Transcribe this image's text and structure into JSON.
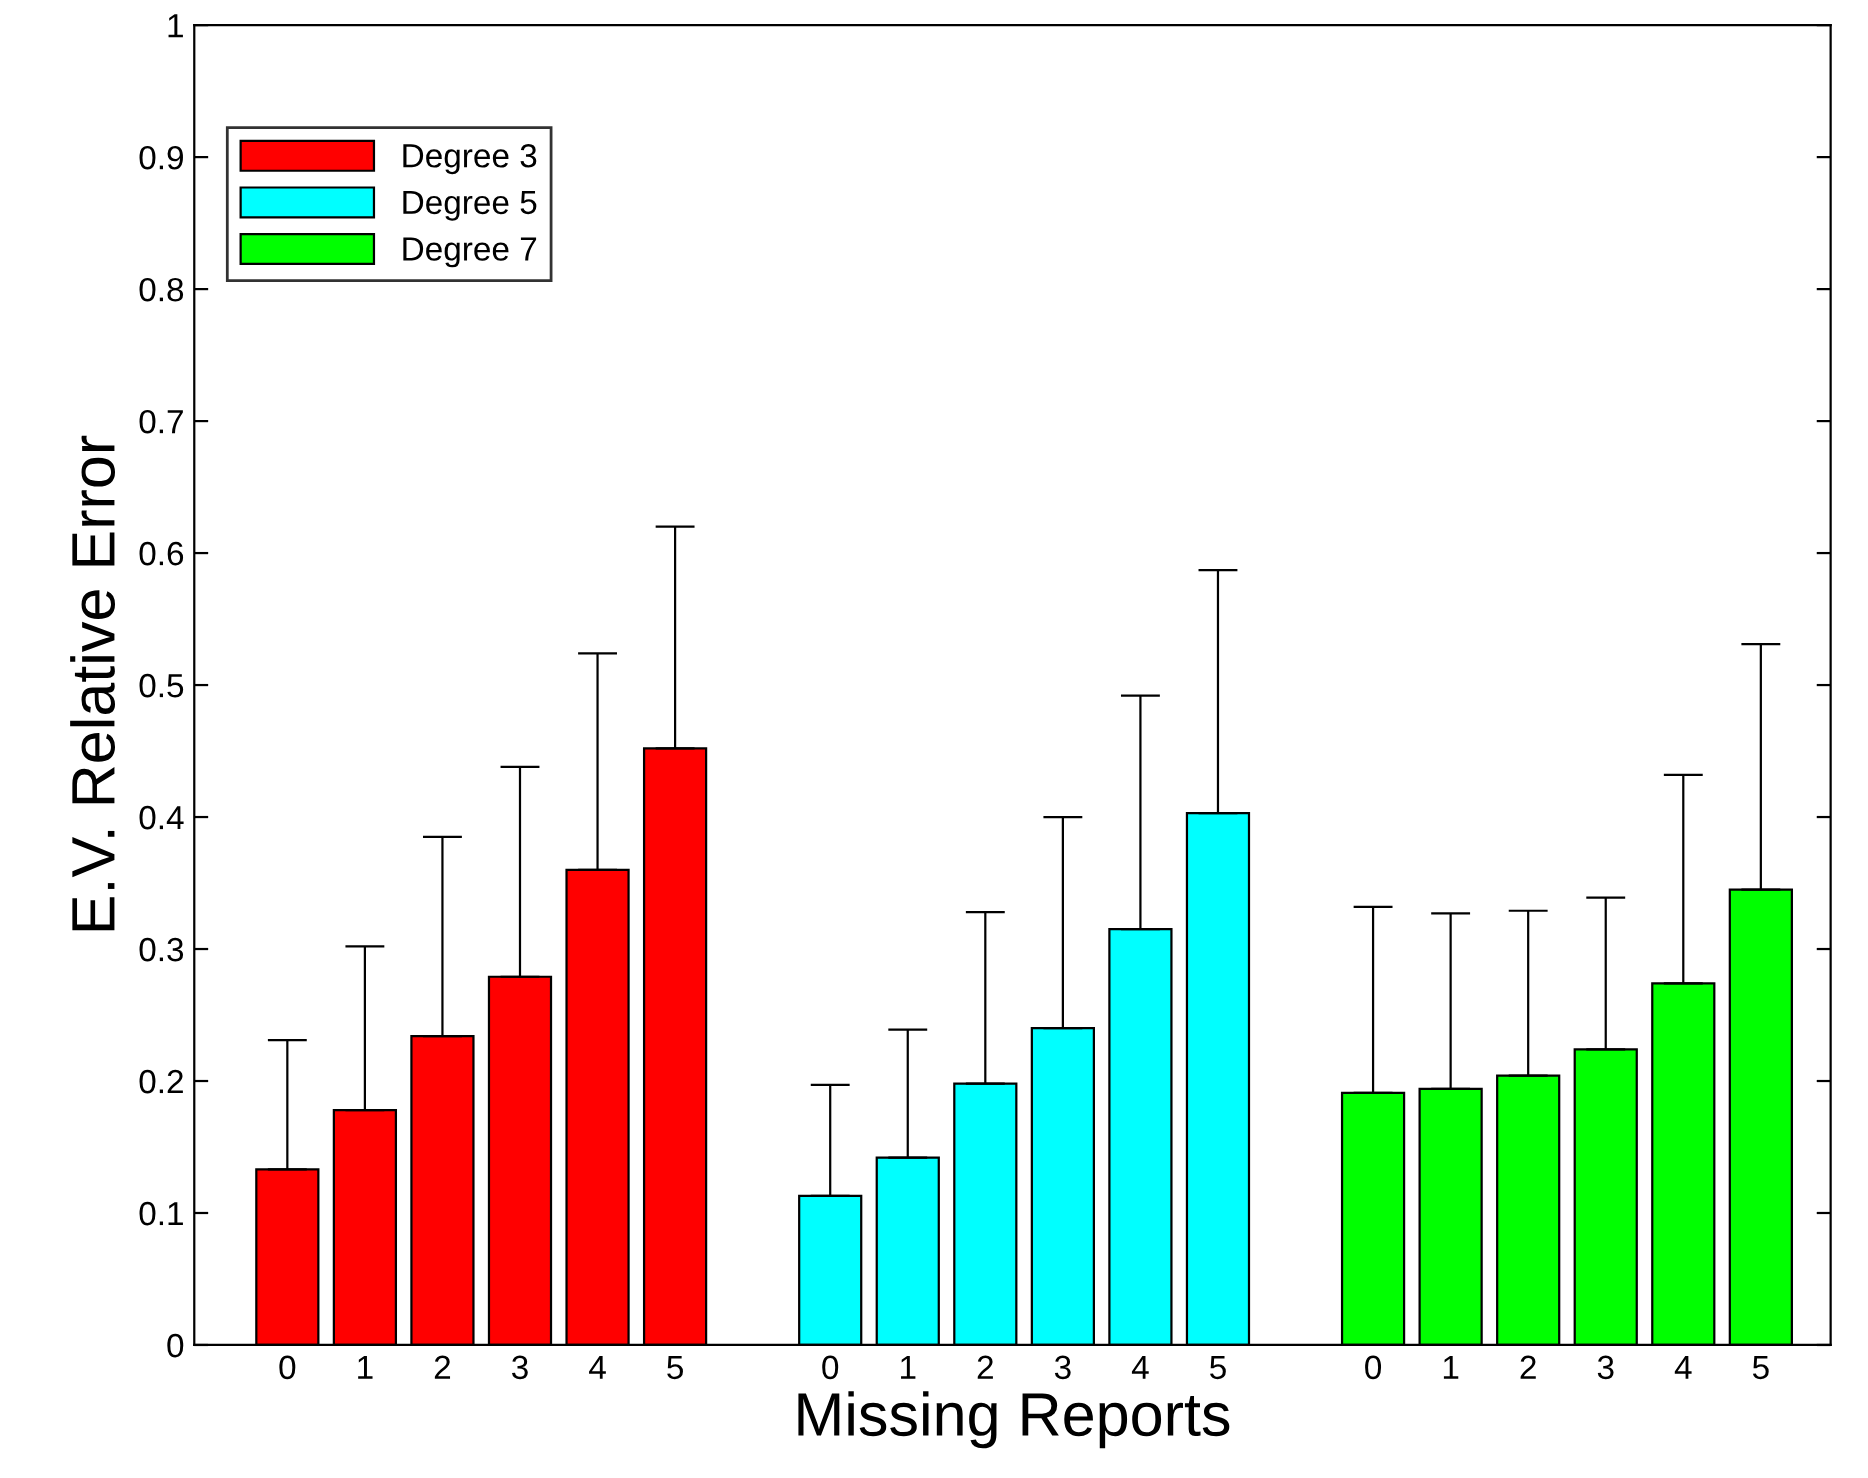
{
  "chart_data": {
    "type": "bar",
    "xlabel": "Missing Reports",
    "ylabel": "E.V. Relative Error",
    "categories": [
      "0",
      "1",
      "2",
      "3",
      "4",
      "5",
      null,
      "0",
      "1",
      "2",
      "3",
      "4",
      "5",
      null,
      "0",
      "1",
      "2",
      "3",
      "4",
      "5"
    ],
    "series": [
      {
        "name": "Degree 3",
        "color": "#ff0000",
        "values": [
          0.133,
          0.178,
          0.234,
          0.279,
          0.36,
          0.452,
          null,
          null,
          null,
          null,
          null,
          null,
          null,
          null,
          null,
          null,
          null,
          null,
          null,
          null
        ],
        "errors": [
          [
            0.133,
            0.231
          ],
          [
            0.178,
            0.302
          ],
          [
            0.234,
            0.385
          ],
          [
            0.279,
            0.438
          ],
          [
            0.36,
            0.524
          ],
          [
            0.452,
            0.62
          ],
          null,
          null,
          null,
          null,
          null,
          null,
          null,
          null,
          null,
          null,
          null,
          null,
          null,
          null
        ]
      },
      {
        "name": "Degree 5",
        "color": "#00ffff",
        "values": [
          null,
          null,
          null,
          null,
          null,
          null,
          null,
          0.113,
          0.142,
          0.198,
          0.24,
          0.315,
          0.403,
          null,
          null,
          null,
          null,
          null,
          null,
          null
        ],
        "errors": [
          null,
          null,
          null,
          null,
          null,
          null,
          null,
          [
            0.113,
            0.197
          ],
          [
            0.142,
            0.239
          ],
          [
            0.198,
            0.328
          ],
          [
            0.24,
            0.4
          ],
          [
            0.315,
            0.492
          ],
          [
            0.403,
            0.587
          ],
          null,
          null,
          null,
          null,
          null,
          null,
          null
        ]
      },
      {
        "name": "Degree 7",
        "color": "#00ff00",
        "values": [
          null,
          null,
          null,
          null,
          null,
          null,
          null,
          null,
          null,
          null,
          null,
          null,
          null,
          null,
          0.191,
          0.194,
          0.204,
          0.224,
          0.274,
          0.345
        ],
        "errors": [
          null,
          null,
          null,
          null,
          null,
          null,
          null,
          null,
          null,
          null,
          null,
          null,
          null,
          null,
          [
            0.191,
            0.332
          ],
          [
            0.194,
            0.327
          ],
          [
            0.204,
            0.329
          ],
          [
            0.224,
            0.339
          ],
          [
            0.274,
            0.432
          ],
          [
            0.345,
            0.531
          ]
        ]
      }
    ],
    "ylim": [
      0,
      1
    ],
    "yticks": [
      0,
      0.1,
      0.2,
      0.3,
      0.4,
      0.5,
      0.6,
      0.7,
      0.8,
      0.9,
      1
    ],
    "grid": false,
    "legend": "top left"
  }
}
